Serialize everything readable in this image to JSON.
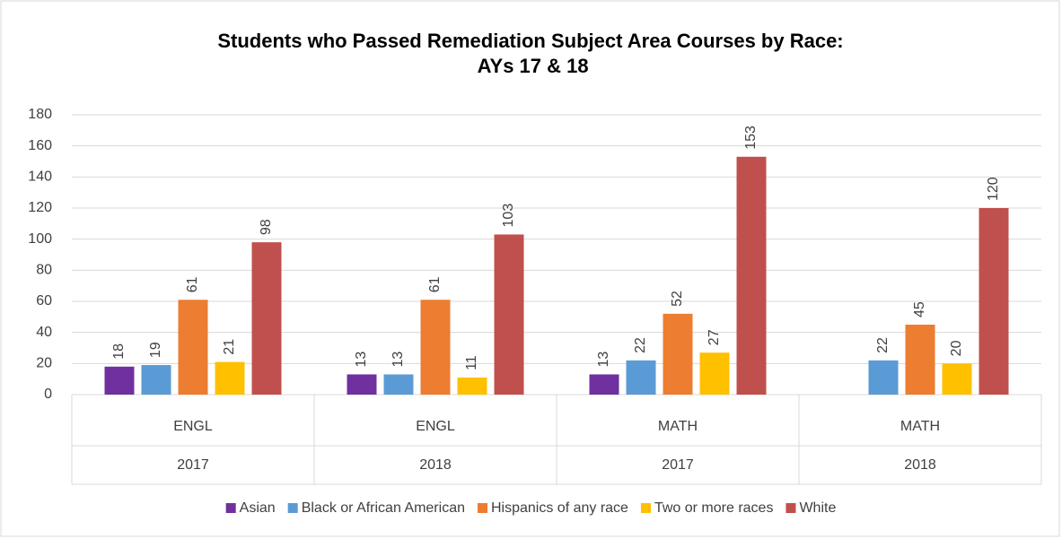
{
  "chart_data": {
    "type": "bar",
    "title": "Students who Passed Remediation Subject Area Courses by Race: AYs 17 & 18",
    "categories": [
      "ENGL",
      "ENGL",
      "MATH",
      "MATH"
    ],
    "years": [
      "2017",
      "2018",
      "2017",
      "2018"
    ],
    "series": [
      {
        "name": "Asian",
        "color": "#7030a0",
        "values": [
          18,
          13,
          13,
          null
        ]
      },
      {
        "name": "Black or African American",
        "color": "#5b9bd5",
        "values": [
          19,
          13,
          22,
          22
        ]
      },
      {
        "name": "Hispanics of any race",
        "color": "#ed7d31",
        "values": [
          61,
          61,
          52,
          45
        ]
      },
      {
        "name": "Two or more races",
        "color": "#ffc000",
        "values": [
          21,
          11,
          27,
          20
        ]
      },
      {
        "name": "White",
        "color": "#c0504d",
        "values": [
          98,
          103,
          153,
          120
        ]
      }
    ],
    "ylim": [
      0,
      180
    ],
    "yticks": [
      0,
      20,
      40,
      60,
      80,
      100,
      120,
      140,
      160,
      180
    ],
    "grid": true,
    "legend": "bottom"
  }
}
